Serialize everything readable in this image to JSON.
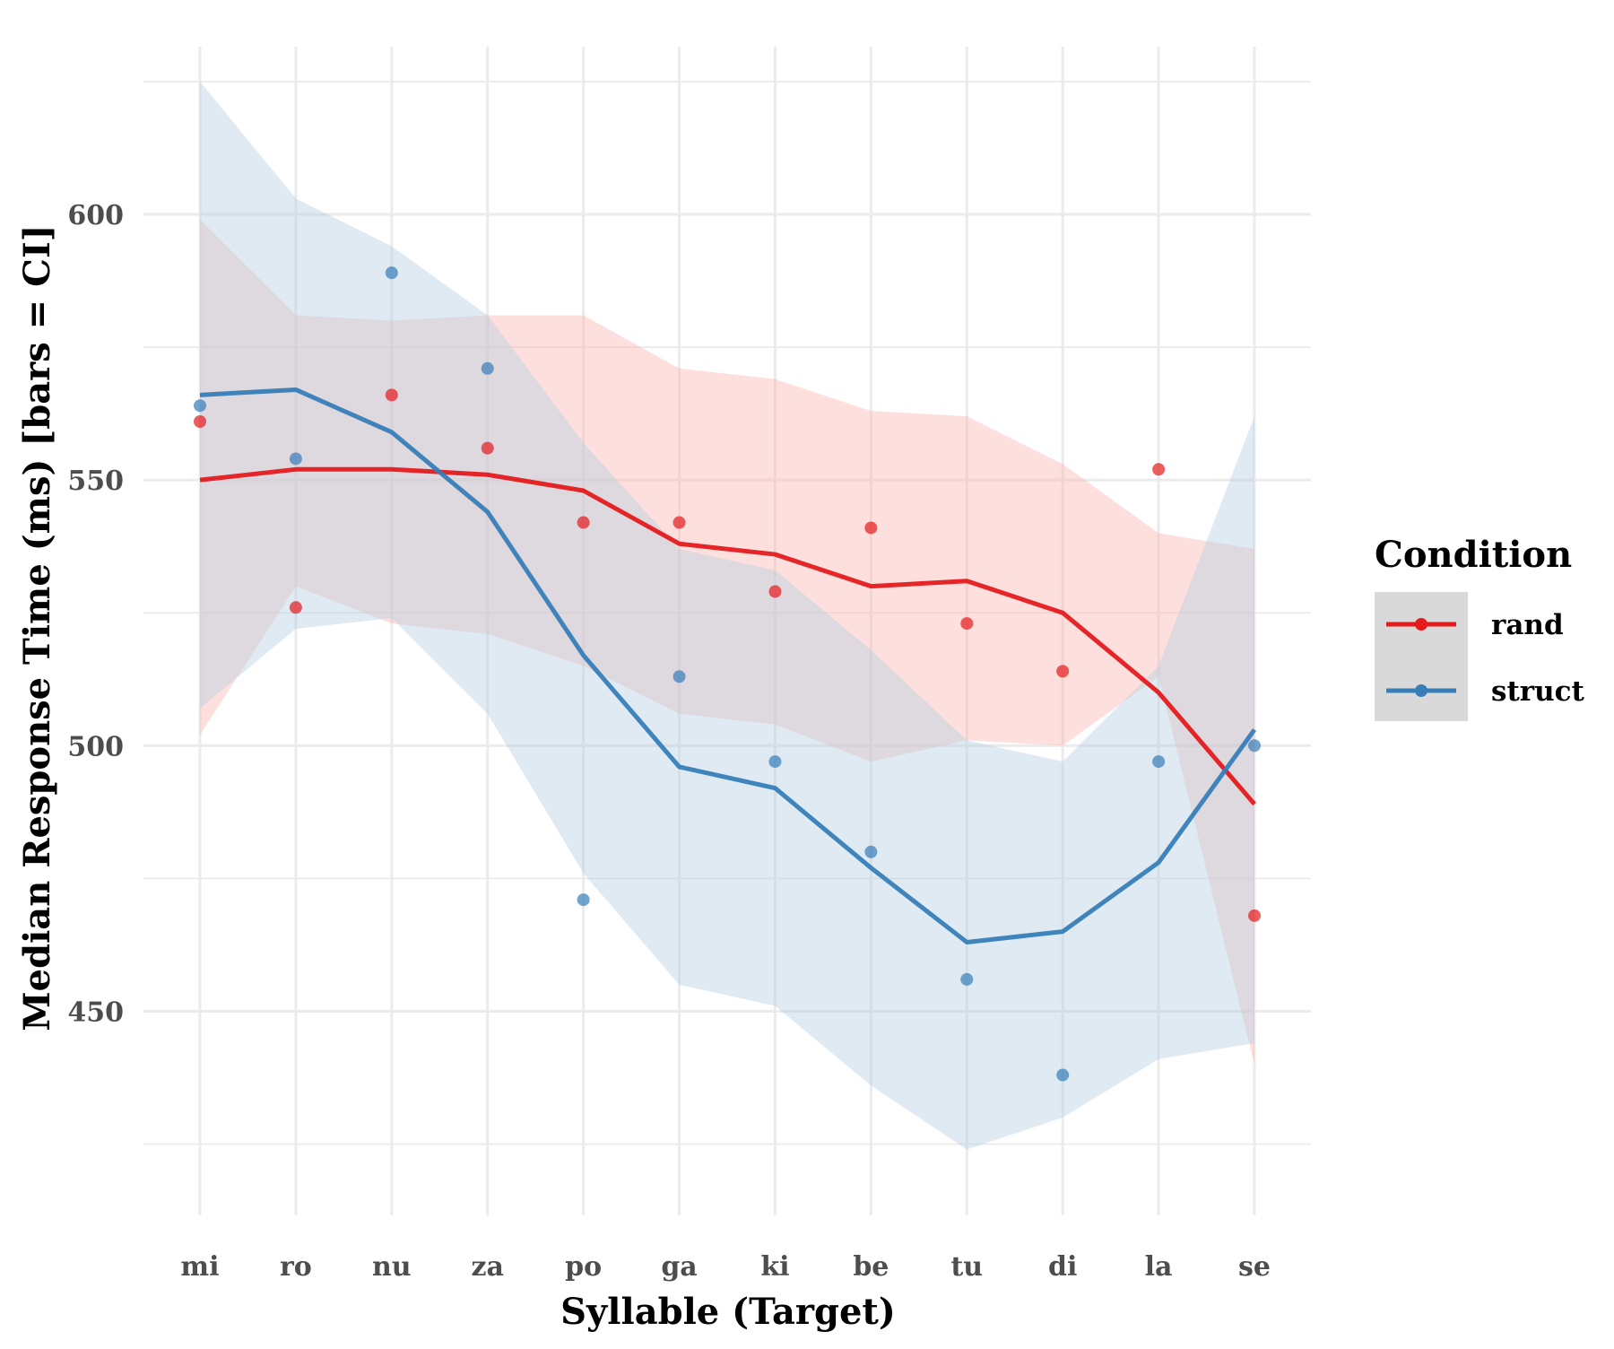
{
  "chart_data": {
    "type": "line",
    "xlabel": "Syllable (Target)",
    "ylabel": "Median Response Time (ms) [bars = CI]",
    "categories": [
      "mi",
      "ro",
      "nu",
      "za",
      "po",
      "ga",
      "ki",
      "be",
      "tu",
      "di",
      "la",
      "se"
    ],
    "ylim": [
      418,
      626
    ],
    "yticks": [
      450,
      500,
      550,
      600
    ],
    "grid": true,
    "legend": {
      "title": "Condition",
      "position": "right"
    },
    "series": [
      {
        "name": "rand",
        "color": "#e41a1c",
        "fill": "#fbb4ae",
        "points": [
          561,
          526,
          566,
          556,
          542,
          542,
          529,
          541,
          523,
          514,
          552,
          468
        ],
        "fit": [
          550,
          552,
          552,
          551,
          548,
          538,
          536,
          530,
          531,
          525,
          510,
          489
        ],
        "ci_lower": [
          502,
          530,
          523,
          521,
          515,
          506,
          504,
          497,
          501,
          500,
          513,
          440
        ],
        "ci_upper": [
          599,
          581,
          580,
          581,
          581,
          571,
          569,
          563,
          562,
          553,
          540,
          537
        ]
      },
      {
        "name": "struct",
        "color": "#377eb8",
        "fill": "#b3cde3",
        "points": [
          564,
          554,
          589,
          571,
          471,
          513,
          497,
          480,
          456,
          438,
          497,
          500
        ],
        "fit": [
          566,
          567,
          559,
          544,
          517,
          496,
          492,
          477,
          463,
          465,
          478,
          503
        ],
        "ci_lower": [
          507,
          522,
          524,
          506,
          476,
          455,
          451,
          436,
          424,
          430,
          441,
          444
        ],
        "ci_upper": [
          625,
          603,
          594,
          581,
          557,
          537,
          533,
          518,
          501,
          497,
          515,
          562
        ]
      }
    ]
  }
}
